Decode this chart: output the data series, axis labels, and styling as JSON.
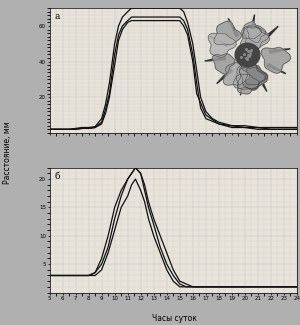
{
  "title_a": "а",
  "title_b": "б",
  "ylabel": "Расстояние, мм",
  "xlabel": "Часы суток",
  "xticks": [
    5,
    6,
    7,
    8,
    9,
    10,
    11,
    12,
    13,
    14,
    15,
    16,
    17,
    18,
    19,
    20,
    21,
    22,
    23,
    24
  ],
  "xlim": [
    5,
    24
  ],
  "ylim_a": [
    0,
    70
  ],
  "ylim_b": [
    0,
    22
  ],
  "yticks_a": [
    20,
    40,
    60
  ],
  "yticks_b": [
    5,
    10,
    15,
    20
  ],
  "bg_color": "#e8e4dc",
  "fig_color": "#b0b0b0",
  "line_color": "#111111",
  "grid_major_color": "#bbbbbb",
  "grid_minor_color": "#d0ccc4",
  "series_a1_x": [
    5,
    5.5,
    6,
    6.5,
    7,
    7.5,
    8,
    8.5,
    9,
    9.3,
    9.6,
    10,
    10.3,
    10.6,
    11,
    11.3,
    11.6,
    12,
    13,
    14,
    15,
    15.3,
    15.6,
    16,
    16.3,
    16.6,
    17,
    17.5,
    18,
    19,
    20,
    21,
    22,
    23,
    24
  ],
  "series_a1_y": [
    2,
    2,
    2,
    2,
    2.5,
    3,
    3,
    3.5,
    8,
    16,
    28,
    50,
    60,
    65,
    68,
    70,
    70,
    70,
    70,
    70,
    70,
    68,
    62,
    50,
    35,
    20,
    12,
    8,
    6,
    4,
    4,
    3,
    3,
    3,
    3
  ],
  "series_a2_x": [
    5,
    5.5,
    6,
    6.5,
    7,
    7.5,
    8,
    8.5,
    9,
    9.3,
    9.6,
    10,
    10.3,
    10.6,
    11,
    11.3,
    11.6,
    12,
    13,
    14,
    15,
    15.3,
    15.6,
    16,
    16.3,
    16.6,
    17,
    18,
    19,
    20,
    21,
    22,
    23,
    24
  ],
  "series_a2_y": [
    2,
    2,
    2,
    2,
    2,
    2.5,
    2.5,
    3,
    6,
    13,
    22,
    44,
    55,
    60,
    63,
    65,
    65,
    65,
    65,
    65,
    65,
    63,
    58,
    44,
    28,
    14,
    8,
    5,
    4,
    3,
    3,
    2,
    2,
    2
  ],
  "series_a3_x": [
    5,
    5.5,
    6,
    6.5,
    7,
    7.5,
    8,
    8.5,
    9,
    9.3,
    9.6,
    10,
    10.3,
    10.6,
    11,
    11.3,
    11.6,
    12,
    13,
    14,
    15,
    15.3,
    15.6,
    16,
    16.3,
    17,
    18,
    19,
    20,
    21,
    22,
    23,
    24
  ],
  "series_a3_y": [
    2,
    2,
    2,
    2,
    2,
    2.5,
    2.5,
    3,
    5,
    11,
    20,
    38,
    52,
    58,
    62,
    63,
    63,
    63,
    63,
    63,
    63,
    60,
    55,
    40,
    22,
    10,
    5,
    3,
    3,
    2,
    2,
    2,
    2
  ],
  "series_b1_x": [
    5,
    6,
    7,
    8,
    8.5,
    9,
    9.5,
    10,
    10.5,
    11,
    11.3,
    11.6,
    12,
    12.3,
    12.6,
    13,
    13.5,
    14,
    14.5,
    15,
    15.5,
    16,
    17,
    18,
    19,
    20,
    21,
    22,
    23,
    24
  ],
  "series_b1_y": [
    3,
    3,
    3,
    3,
    3.5,
    5,
    8,
    13,
    17,
    20,
    21,
    22,
    21,
    19,
    16,
    13,
    10,
    7,
    4,
    2,
    1.5,
    1,
    1,
    1,
    1,
    1,
    1,
    1,
    1,
    1
  ],
  "series_b2_x": [
    5,
    6,
    7,
    8,
    8.5,
    9,
    9.5,
    10,
    10.5,
    11,
    11.3,
    11.6,
    12,
    12.3,
    12.6,
    13,
    13.5,
    14,
    14.5,
    15,
    15.5,
    16,
    17,
    18,
    19,
    20,
    21,
    22,
    23,
    24
  ],
  "series_b2_y": [
    3,
    3,
    3,
    3,
    3.5,
    6,
    10,
    15,
    18,
    20,
    21,
    22,
    21,
    18,
    15,
    12,
    8,
    5,
    3,
    1.5,
    1,
    1,
    1,
    1,
    1,
    1,
    1,
    1,
    1,
    1
  ],
  "series_b3_x": [
    5,
    6,
    7,
    8,
    8.5,
    9,
    9.5,
    10,
    10.5,
    11,
    11.3,
    11.6,
    12,
    12.3,
    12.6,
    13,
    13.5,
    14,
    14.5,
    15,
    15.5,
    16,
    17,
    18,
    19,
    20,
    21,
    22,
    23,
    24
  ],
  "series_b3_y": [
    3,
    3,
    3,
    3,
    3,
    4,
    7,
    11,
    15,
    17,
    19,
    20,
    18,
    16,
    13,
    10,
    7,
    4,
    2,
    1,
    1,
    1,
    1,
    1,
    1,
    1,
    1,
    1,
    1,
    1
  ]
}
